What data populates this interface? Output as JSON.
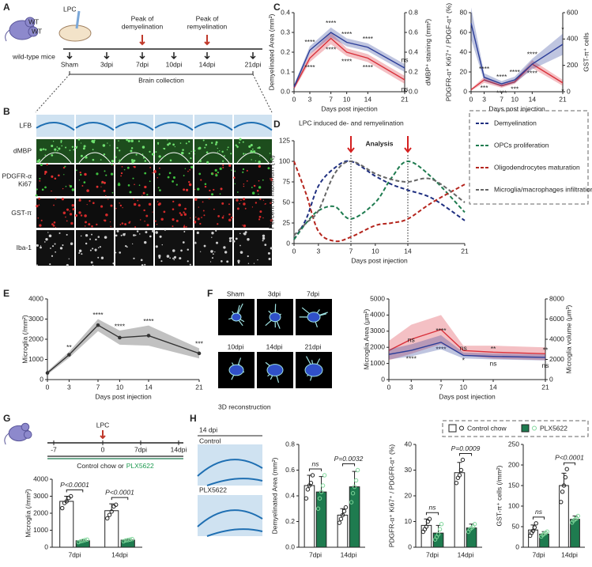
{
  "panels": [
    "A",
    "B",
    "C",
    "D",
    "E",
    "F",
    "G",
    "H"
  ],
  "timeline_a": {
    "mouse_label": "WT",
    "injection": "LPC",
    "peak_demyelination": [
      "Peak of",
      "demyelination"
    ],
    "peak_remyelination": [
      "Peak of",
      "remyelination"
    ],
    "mice": "wild-type mice",
    "timepoints": [
      "Sham",
      "3dpi",
      "7dpi",
      "10dpi",
      "14dpi",
      "21dpi"
    ],
    "collection": "Brain collection"
  },
  "image_grid_b": {
    "rows": [
      [
        "LFB"
      ],
      [
        "dMBP"
      ],
      [
        "PDGFR-α",
        "Ki67"
      ],
      [
        "GST-π"
      ],
      [
        "Iba-1"
      ]
    ]
  },
  "reconstruction_f": {
    "timepoints": [
      "Sham",
      "3dpi",
      "7dpi",
      "10dpi",
      "14dpi",
      "21dpi"
    ],
    "caption": "3D reconstruction"
  },
  "timeline_g": {
    "ticks": [
      "-7",
      "0",
      "7dpi",
      "14dpi"
    ],
    "injection": "LPC",
    "diet_prefix": "Control chow or",
    "diet_drug": "PLX5622"
  },
  "images_h": {
    "title": "14 dpi",
    "rows": [
      "Control",
      "PLX5622"
    ]
  },
  "chart_data": [
    {
      "type": "line",
      "x": [
        0,
        3,
        7,
        10,
        14,
        21
      ],
      "xlim": [
        0,
        21
      ],
      "xticks": [
        0,
        3,
        7,
        10,
        14,
        21
      ],
      "xlabel": "Days post injection",
      "ylabel": "Demyelinated Area (mm²)",
      "ylim": [
        0,
        0.4
      ],
      "yticks": [
        {
          "value": 0,
          "label": "0.0"
        },
        0.1,
        0.2,
        0.3,
        0.4
      ],
      "y2label": "dMBP⁺ staining (mm²)",
      "y2lim": [
        0,
        0.8
      ],
      "y2ticks": [
        {
          "value": 0,
          "label": "0.0"
        },
        0.2,
        0.4,
        0.6,
        0.8
      ],
      "series": [
        {
          "color": "#d9303a",
          "values": [
            0.02,
            0.17,
            0.27,
            0.2,
            0.17,
            0.06
          ],
          "errors": [
            0.01,
            0.02,
            0.03,
            0.02,
            0.02,
            0.02
          ],
          "sig": [
            null,
            "****",
            "****",
            "****",
            "****",
            "ns"
          ]
        },
        {
          "color": "#2c3e99",
          "axis": "y2",
          "values": [
            0.05,
            0.42,
            0.6,
            0.5,
            0.45,
            0.24
          ],
          "errors": [
            0.02,
            0.04,
            0.05,
            0.04,
            0.04,
            0.04
          ],
          "sig": [
            null,
            "****",
            "****",
            "****",
            "****",
            "ns"
          ]
        }
      ]
    },
    {
      "type": "line",
      "x": [
        0,
        3,
        7,
        10,
        14,
        21
      ],
      "xlim": [
        0,
        21
      ],
      "xticks": [
        0,
        3,
        7,
        10,
        14,
        21
      ],
      "xlabel": "Days post injection",
      "ylabel": "PDGFR-α⁺ Ki67⁺ / PDGF-α⁺ (%)",
      "ylim": [
        0,
        80
      ],
      "yticks": [
        0,
        20,
        40,
        60,
        80
      ],
      "y2label": "GST-π⁺ cells",
      "y2lim": [
        0,
        600
      ],
      "y2ticks": [
        0,
        200,
        400,
        600
      ],
      "series": [
        {
          "color": "#d9303a",
          "values": [
            2,
            12,
            6,
            10,
            28,
            9
          ],
          "errors": [
            1,
            3,
            2,
            2,
            4,
            3
          ],
          "sig": [
            null,
            "***",
            "****",
            "***",
            "****",
            "*"
          ]
        },
        {
          "color": "#2c3e99",
          "axis": "y2",
          "values": [
            520,
            110,
            60,
            90,
            210,
            360
          ],
          "errors": [
            120,
            30,
            20,
            25,
            40,
            80
          ],
          "sig": [
            null,
            "****",
            "****",
            "****",
            "****",
            "*"
          ]
        }
      ]
    },
    {
      "type": "line",
      "title": "LPC induced de- and remyelination",
      "x": [
        0,
        1.5,
        3,
        5,
        7,
        10,
        12,
        14,
        17,
        21
      ],
      "xlim": [
        0,
        21
      ],
      "xticks": [
        0,
        3,
        7,
        10,
        14,
        21
      ],
      "xlabel": "Days post injection",
      "ylabel": "Percent of maximum (%)",
      "ylim": [
        0,
        125
      ],
      "yticks": [
        0,
        25,
        50,
        75,
        100,
        125
      ],
      "dashed": true,
      "annotation": "Analysis",
      "markers": [
        7,
        14
      ],
      "series": [
        {
          "name": "Demyelination",
          "color": "#1f2f80",
          "values": [
            5,
            30,
            70,
            92,
            100,
            82,
            72,
            65,
            55,
            28
          ]
        },
        {
          "name": "OPCs proliferation",
          "color": "#1e7b4f",
          "values": [
            5,
            25,
            40,
            45,
            30,
            50,
            80,
            100,
            80,
            38
          ]
        },
        {
          "name": "Oligodendrocytes maturation",
          "color": "#b5261e",
          "values": [
            100,
            60,
            15,
            3,
            8,
            22,
            25,
            30,
            50,
            72
          ]
        },
        {
          "name": "Microglia/macrophages infiltration",
          "color": "#666666",
          "values": [
            10,
            25,
            40,
            85,
            100,
            85,
            78,
            75,
            78,
            50
          ]
        }
      ]
    },
    {
      "type": "line",
      "x": [
        0,
        3,
        7,
        10,
        14,
        21
      ],
      "xlim": [
        0,
        21
      ],
      "xticks": [
        0,
        3,
        7,
        10,
        14,
        21
      ],
      "xlabel": "Days post injection",
      "ylabel": "Microglia (/mm²)",
      "ylim": [
        0,
        4000
      ],
      "yticks": [
        0,
        1000,
        2000,
        3000,
        4000
      ],
      "point_markers": true,
      "series": [
        {
          "color": "#333333",
          "sig_color": "#c0392b",
          "values": [
            330,
            1230,
            2700,
            2080,
            2180,
            1300
          ],
          "errors": [
            80,
            150,
            300,
            350,
            500,
            250
          ],
          "sig": [
            null,
            "**",
            "****",
            "****",
            "****",
            "***"
          ]
        }
      ]
    },
    {
      "type": "line",
      "x": [
        0,
        3,
        7,
        10,
        14,
        21
      ],
      "xlim": [
        0,
        21
      ],
      "xticks": [
        0,
        3,
        7,
        10,
        14,
        21
      ],
      "xlabel": "Days post injection",
      "ylabel": "Microglia Area (μm²)",
      "ylim": [
        0,
        5000
      ],
      "yticks": [
        0,
        1000,
        2000,
        3000,
        4000,
        5000
      ],
      "y2label": "Microglia volume (μm³)",
      "y2lim": [
        0,
        8000
      ],
      "y2ticks": [
        0,
        2000,
        4000,
        6000,
        8000
      ],
      "series": [
        {
          "color": "#d9303a",
          "values": [
            1800,
            2500,
            3100,
            1800,
            1700,
            1600
          ],
          "errors": [
            600,
            900,
            900,
            300,
            400,
            400
          ],
          "sig": [
            null,
            "****",
            "****",
            "*",
            "ns",
            "ns"
          ]
        },
        {
          "color": "#2c3e99",
          "axis": "y2",
          "values": [
            2500,
            2900,
            3700,
            2400,
            2300,
            2200
          ],
          "errors": [
            500,
            600,
            700,
            300,
            300,
            300
          ],
          "sig": [
            null,
            "ns",
            "****",
            "ns",
            "**",
            "**"
          ]
        }
      ]
    },
    {
      "type": "bar",
      "ylabel": "Microglia (/mm²)",
      "categories": [
        "7dpi",
        "14dpi"
      ],
      "ylim": [
        0,
        4000
      ],
      "yticks": [
        0,
        1000,
        2000,
        3000,
        4000
      ],
      "pvalues": [
        "P<0.0001",
        "P<0.0001"
      ],
      "series": [
        {
          "color": "#ffffff",
          "point_color": "#222222",
          "values": [
            2700,
            2150
          ],
          "errors": [
            300,
            400
          ],
          "points": [
            [
              2300,
              2600,
              2700,
              2900,
              3000
            ],
            [
              1700,
              1900,
              2100,
              2400,
              2500
            ]
          ]
        },
        {
          "color": "#1e7b4f",
          "point_color": "#7fd69a",
          "values": [
            380,
            420
          ],
          "errors": [
            60,
            50
          ],
          "points": [
            [
              300,
              350,
              380,
              420,
              450
            ],
            [
              350,
              400,
              420,
              450,
              480
            ]
          ]
        }
      ]
    },
    {
      "type": "bar",
      "ylabel": "Demyelinated Area (mm²)",
      "categories": [
        "7dpi",
        "14dpi"
      ],
      "ylim": [
        0,
        0.8
      ],
      "yticks": [
        {
          "value": 0,
          "label": "0.0"
        },
        0.2,
        0.4,
        0.6,
        0.8
      ],
      "pvalues": [
        "ns",
        "P=0.0032"
      ],
      "series": [
        {
          "color": "#ffffff",
          "point_color": "#222222",
          "values": [
            0.48,
            0.25
          ],
          "errors": [
            0.08,
            0.05
          ],
          "points": [
            [
              0.38,
              0.45,
              0.48,
              0.5,
              0.56
            ],
            [
              0.19,
              0.22,
              0.25,
              0.28,
              0.31
            ]
          ]
        },
        {
          "color": "#1e7b4f",
          "point_color": "#7fd69a",
          "values": [
            0.43,
            0.47
          ],
          "errors": [
            0.12,
            0.12
          ],
          "points": [
            [
              0.3,
              0.38,
              0.43,
              0.48,
              0.56
            ],
            [
              0.35,
              0.42,
              0.47,
              0.52,
              0.6
            ]
          ]
        }
      ]
    },
    {
      "type": "bar",
      "ylabel": "PDGFR-α⁺ Ki67⁺ / PDGFR-α⁺ (%)",
      "categories": [
        "7dpi",
        "14dpi"
      ],
      "ylim": [
        0,
        40
      ],
      "yticks": [
        0,
        10,
        20,
        30,
        40
      ],
      "pvalues": [
        "ns",
        "P=0.0009"
      ],
      "series": [
        {
          "color": "#ffffff",
          "point_color": "#222222",
          "values": [
            8.5,
            29
          ],
          "errors": [
            2.5,
            4
          ],
          "points": [
            [
              6,
              7,
              8,
              10,
              11
            ],
            [
              25,
              27,
              28,
              30,
              34
            ]
          ]
        },
        {
          "color": "#1e7b4f",
          "point_color": "#7fd69a",
          "values": [
            5.5,
            7.5
          ],
          "errors": [
            3,
            1.5
          ],
          "points": [
            [
              3,
              4,
              5,
              7,
              9
            ],
            [
              6,
              7,
              7.5,
              8,
              9
            ]
          ]
        }
      ]
    },
    {
      "type": "bar",
      "ylabel": "GST-π⁺ cells (/mm²)",
      "categories": [
        "7dpi",
        "14dpi"
      ],
      "ylim": [
        0,
        250
      ],
      "yticks": [
        0,
        50,
        100,
        150,
        200,
        250
      ],
      "pvalues": [
        "ns",
        "P<0.0001"
      ],
      "series": [
        {
          "name": "Control chow",
          "color": "#ffffff",
          "point_color": "#222222",
          "values": [
            42,
            150
          ],
          "errors": [
            12,
            30
          ],
          "points": [
            [
              28,
              35,
              40,
              48,
              58
            ],
            [
              110,
              135,
              150,
              170,
              190
            ]
          ]
        },
        {
          "name": "PLX5622",
          "color": "#1e7b4f",
          "point_color": "#7fd69a",
          "values": [
            32,
            68
          ],
          "errors": [
            6,
            8
          ],
          "points": [
            [
              26,
              30,
              33,
              35,
              38
            ],
            [
              60,
              65,
              68,
              70,
              76
            ]
          ]
        }
      ]
    }
  ]
}
